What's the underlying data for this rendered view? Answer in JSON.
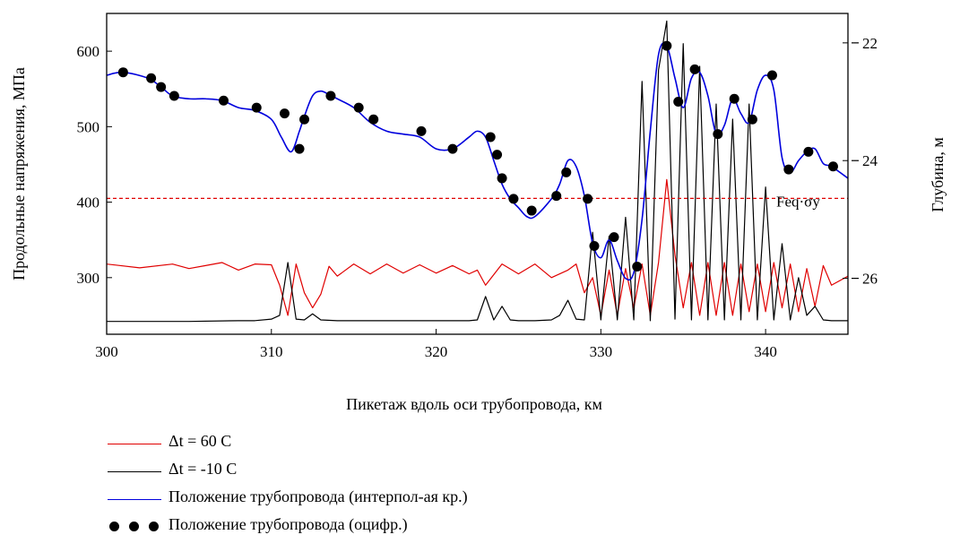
{
  "chart_data": {
    "type": "line",
    "xlabel": "Пикетаж вдоль оси трубопровода, км",
    "ylabel": "Продольные напряжения, МПа",
    "y2label": "Глубина, м",
    "xlim": [
      300,
      345
    ],
    "ylim": [
      225,
      650
    ],
    "y2lim": [
      -26.95,
      -21.5
    ],
    "x_ticks": [
      300,
      310,
      320,
      330,
      340
    ],
    "y_ticks": [
      300,
      400,
      500,
      600
    ],
    "y2_ticks": [
      -22,
      -24,
      -26
    ],
    "grid": false,
    "legend_position": "bottom-left",
    "threshold": {
      "label": "Feq·σy",
      "value": 405,
      "color": "#e00000",
      "style": "dashed"
    },
    "series": [
      {
        "name": "Δt = 60 C",
        "axis": "left",
        "color": "#e00000",
        "x": [
          300,
          302,
          304,
          305,
          306,
          307,
          308,
          309,
          310,
          310.5,
          311,
          311.5,
          312,
          312.5,
          313,
          313.5,
          314,
          315,
          316,
          317,
          318,
          319,
          320,
          321,
          322,
          322.5,
          323,
          324,
          325,
          326,
          327,
          328,
          328.5,
          329,
          329.5,
          330,
          330.5,
          331,
          331.5,
          332,
          332.5,
          333,
          333.5,
          334,
          334.5,
          335,
          335.5,
          336,
          336.5,
          337,
          337.5,
          338,
          338.5,
          339,
          339.5,
          340,
          340.5,
          341,
          341.5,
          342,
          342.5,
          343,
          343.5,
          344,
          345
        ],
        "y": [
          318,
          313,
          318,
          312,
          316,
          320,
          310,
          318,
          317,
          290,
          250,
          318,
          280,
          260,
          278,
          315,
          302,
          318,
          305,
          318,
          306,
          317,
          306,
          316,
          305,
          310,
          290,
          318,
          305,
          318,
          300,
          310,
          318,
          280,
          300,
          250,
          310,
          250,
          312,
          260,
          318,
          250,
          320,
          430,
          330,
          260,
          320,
          250,
          320,
          250,
          320,
          250,
          318,
          255,
          318,
          255,
          320,
          260,
          318,
          255,
          312,
          262,
          316,
          290,
          302
        ]
      },
      {
        "name": "Δt = -10 C",
        "axis": "left",
        "color": "#000000",
        "x": [
          300,
          305,
          308,
          309,
          310,
          310.5,
          311,
          311.5,
          312,
          312.5,
          313,
          314,
          316,
          318,
          320,
          322,
          322.5,
          323,
          323.5,
          324,
          324.5,
          325,
          326,
          327,
          327.5,
          328,
          328.5,
          329,
          329.5,
          330,
          330.5,
          331,
          331.5,
          332,
          332.5,
          333,
          333.5,
          334,
          334.5,
          335,
          335.5,
          336,
          336.5,
          337,
          337.5,
          338,
          338.5,
          339,
          339.5,
          340,
          340.5,
          341,
          341.5,
          342,
          342.5,
          343,
          343.5,
          344,
          345
        ],
        "y": [
          242,
          242,
          243,
          243,
          245,
          250,
          320,
          245,
          244,
          252,
          244,
          243,
          243,
          243,
          243,
          243,
          244,
          275,
          244,
          262,
          244,
          243,
          243,
          244,
          250,
          270,
          245,
          244,
          360,
          244,
          355,
          244,
          380,
          244,
          560,
          243,
          575,
          640,
          245,
          610,
          244,
          580,
          244,
          530,
          244,
          510,
          244,
          530,
          244,
          420,
          244,
          345,
          244,
          300,
          250,
          262,
          244,
          243,
          243
        ]
      },
      {
        "name": "Положение трубопровода (интерпол-ая кр.)",
        "axis": "right",
        "color": "#0000dd",
        "x": [
          300,
          301,
          302.5,
          303.3,
          304,
          305,
          306,
          307,
          308,
          309,
          310,
          310.6,
          311.2,
          311.7,
          312,
          312.5,
          313,
          313.5,
          314,
          315,
          316,
          317,
          318,
          319,
          320,
          321,
          322,
          322.5,
          323,
          323.5,
          324,
          324.5,
          325,
          325.5,
          326,
          327,
          327.5,
          328,
          328.5,
          329,
          329.5,
          330,
          330.5,
          331,
          331.5,
          332,
          332.5,
          333,
          333.5,
          334,
          334.5,
          335,
          335.5,
          336,
          336.5,
          337,
          337.5,
          338,
          338.5,
          339,
          339.5,
          340,
          340.5,
          341,
          341.5,
          342,
          342.5,
          343,
          343.5,
          344,
          345
        ],
        "y": [
          -22.55,
          -22.5,
          -22.6,
          -22.75,
          -22.9,
          -22.95,
          -22.95,
          -22.98,
          -23.1,
          -23.15,
          -23.3,
          -23.6,
          -23.85,
          -23.5,
          -23.25,
          -22.9,
          -22.82,
          -22.88,
          -22.95,
          -23.1,
          -23.35,
          -23.5,
          -23.55,
          -23.6,
          -23.8,
          -23.8,
          -23.6,
          -23.5,
          -23.6,
          -24.0,
          -24.4,
          -24.65,
          -24.8,
          -24.95,
          -24.95,
          -24.65,
          -24.4,
          -24.0,
          -24.1,
          -24.6,
          -25.4,
          -25.65,
          -25.35,
          -25.7,
          -26.0,
          -25.9,
          -25.0,
          -23.5,
          -22.2,
          -22.05,
          -22.6,
          -23.1,
          -22.6,
          -22.5,
          -22.9,
          -23.55,
          -23.4,
          -22.95,
          -23.2,
          -23.35,
          -22.8,
          -22.55,
          -22.8,
          -23.95,
          -24.2,
          -24.0,
          -23.85,
          -23.8,
          -24.05,
          -24.1,
          -24.3
        ]
      },
      {
        "name": "Положение трубопровода (оцифр.)",
        "axis": "right",
        "color": "#000000",
        "marker": "circle",
        "x": [
          301,
          302.7,
          303.3,
          304.1,
          307.1,
          309.1,
          310.8,
          311.7,
          312,
          313.6,
          315.3,
          316.2,
          319.1,
          321,
          323.3,
          323.7,
          324,
          324.7,
          325.8,
          327.3,
          327.9,
          329.2,
          329.6,
          330.8,
          332.2,
          334,
          334.7,
          335.7,
          337.1,
          338.1,
          339.2,
          340.4,
          341.4,
          342.6,
          344.1
        ],
        "y": [
          -22.5,
          -22.6,
          -22.75,
          -22.9,
          -22.98,
          -23.1,
          -23.2,
          -23.8,
          -23.3,
          -22.9,
          -23.1,
          -23.3,
          -23.5,
          -23.8,
          -23.6,
          -23.9,
          -24.3,
          -24.65,
          -24.85,
          -24.6,
          -24.2,
          -24.65,
          -25.45,
          -25.3,
          -25.8,
          -22.05,
          -23.0,
          -22.45,
          -23.55,
          -22.95,
          -23.3,
          -22.55,
          -24.15,
          -23.85,
          -24.1
        ]
      }
    ]
  },
  "legend": {
    "items": [
      {
        "label": "Δt = 60 C",
        "color": "#e00000"
      },
      {
        "label": "Δt = -10 C",
        "color": "#000000"
      },
      {
        "label": "Положение трубопровода (интерпол-ая кр.)",
        "color": "#0000dd"
      },
      {
        "label": "Положение трубопровода (оцифр.)",
        "color": "#000000"
      }
    ]
  }
}
